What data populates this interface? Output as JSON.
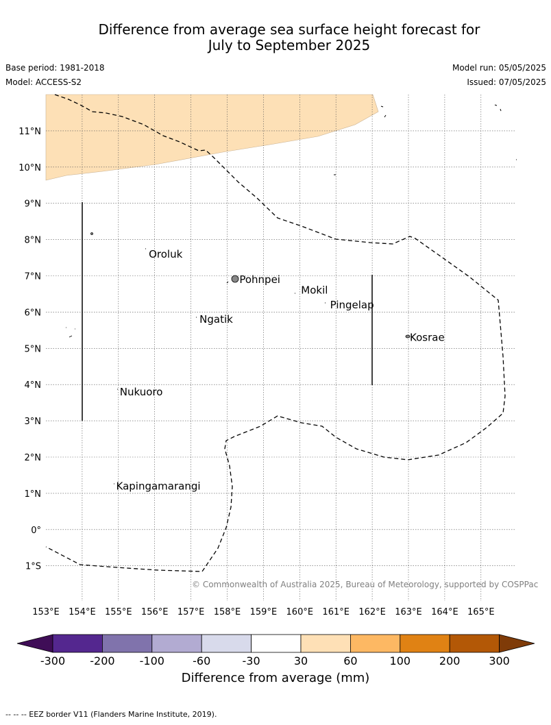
{
  "title": {
    "line1": "Difference from average sea surface height forecast for",
    "line2": "July to September 2025"
  },
  "meta": {
    "base_period": "Base period: 1981-2018",
    "model": "Model: ACCESS-S2",
    "model_run": "Model run: 05/05/2025",
    "issued": "Issued: 07/05/2025"
  },
  "map": {
    "lon_range": [
      153,
      166
    ],
    "lat_range": [
      -2,
      12
    ],
    "lon_ticks": [
      "153°E",
      "154°E",
      "155°E",
      "156°E",
      "157°E",
      "158°E",
      "159°E",
      "160°E",
      "161°E",
      "162°E",
      "163°E",
      "164°E",
      "165°E"
    ],
    "lat_ticks": [
      "11°N",
      "10°N",
      "9°N",
      "8°N",
      "7°N",
      "6°N",
      "5°N",
      "4°N",
      "3°N",
      "2°N",
      "1°N",
      "0°",
      "1°S"
    ],
    "places": [
      {
        "name": "Oroluk",
        "lon": 155.8,
        "lat": 7.6
      },
      {
        "name": "Pohnpei",
        "lon": 158.3,
        "lat": 6.9
      },
      {
        "name": "Mokil",
        "lon": 160.0,
        "lat": 6.6
      },
      {
        "name": "Pingelap",
        "lon": 160.8,
        "lat": 6.2
      },
      {
        "name": "Ngatik",
        "lon": 157.2,
        "lat": 5.8
      },
      {
        "name": "Kosrae",
        "lon": 163.0,
        "lat": 5.3
      },
      {
        "name": "Nukuoro",
        "lon": 155.0,
        "lat": 3.8
      },
      {
        "name": "Kapingamarangi",
        "lon": 154.9,
        "lat": 1.2
      }
    ],
    "anomaly_fill_color": "#fde0b6"
  },
  "colorbar": {
    "ticks": [
      "-300",
      "-200",
      "-100",
      "-60",
      "-30",
      "30",
      "60",
      "100",
      "200",
      "300"
    ],
    "colors": [
      "#3f0d57",
      "#54278f",
      "#8073ac",
      "#b2abd2",
      "#d8daeb",
      "#ffffff",
      "#fee0b6",
      "#fdb863",
      "#e08214",
      "#b35806",
      "#7f3b08"
    ],
    "label": "Difference from average (mm)"
  },
  "copyright": "© Commonwealth of Australia 2025, Bureau of Meteorology, supported by COSPPac",
  "footer": "--  --  -- EEZ border V11 (Flanders Marine Institute, 2019)."
}
